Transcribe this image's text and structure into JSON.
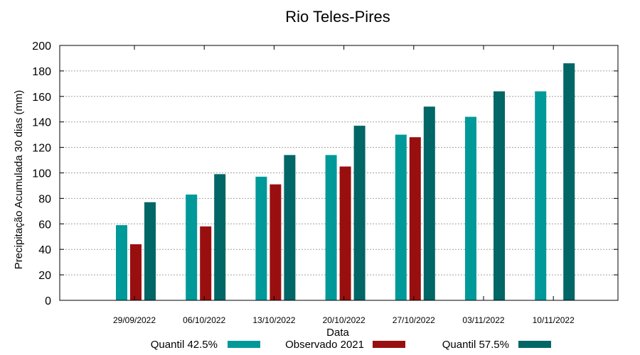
{
  "chart_data": {
    "type": "bar",
    "title": "Rio Teles-Pires",
    "xlabel": "Data",
    "ylabel": "Precipitação Acumulada 30 dias (mm)",
    "ylim": [
      0,
      200
    ],
    "yticks": [
      0,
      20,
      40,
      60,
      80,
      100,
      120,
      140,
      160,
      180,
      200
    ],
    "grid": true,
    "legend_position": "bottom",
    "categories": [
      "29/09/2022",
      "06/10/2022",
      "13/10/2022",
      "20/10/2022",
      "27/10/2022",
      "03/11/2022",
      "10/11/2022"
    ],
    "series": [
      {
        "name": "Quantil 42.5%",
        "color": "#009999",
        "values": [
          59,
          83,
          97,
          114,
          130,
          144,
          164
        ]
      },
      {
        "name": "Observado 2021",
        "color": "#990f0f",
        "values": [
          44,
          58,
          91,
          105,
          128,
          null,
          null
        ]
      },
      {
        "name": "Quantil 57.5%",
        "color": "#006666",
        "values": [
          77,
          99,
          114,
          137,
          152,
          164,
          186
        ]
      }
    ]
  }
}
